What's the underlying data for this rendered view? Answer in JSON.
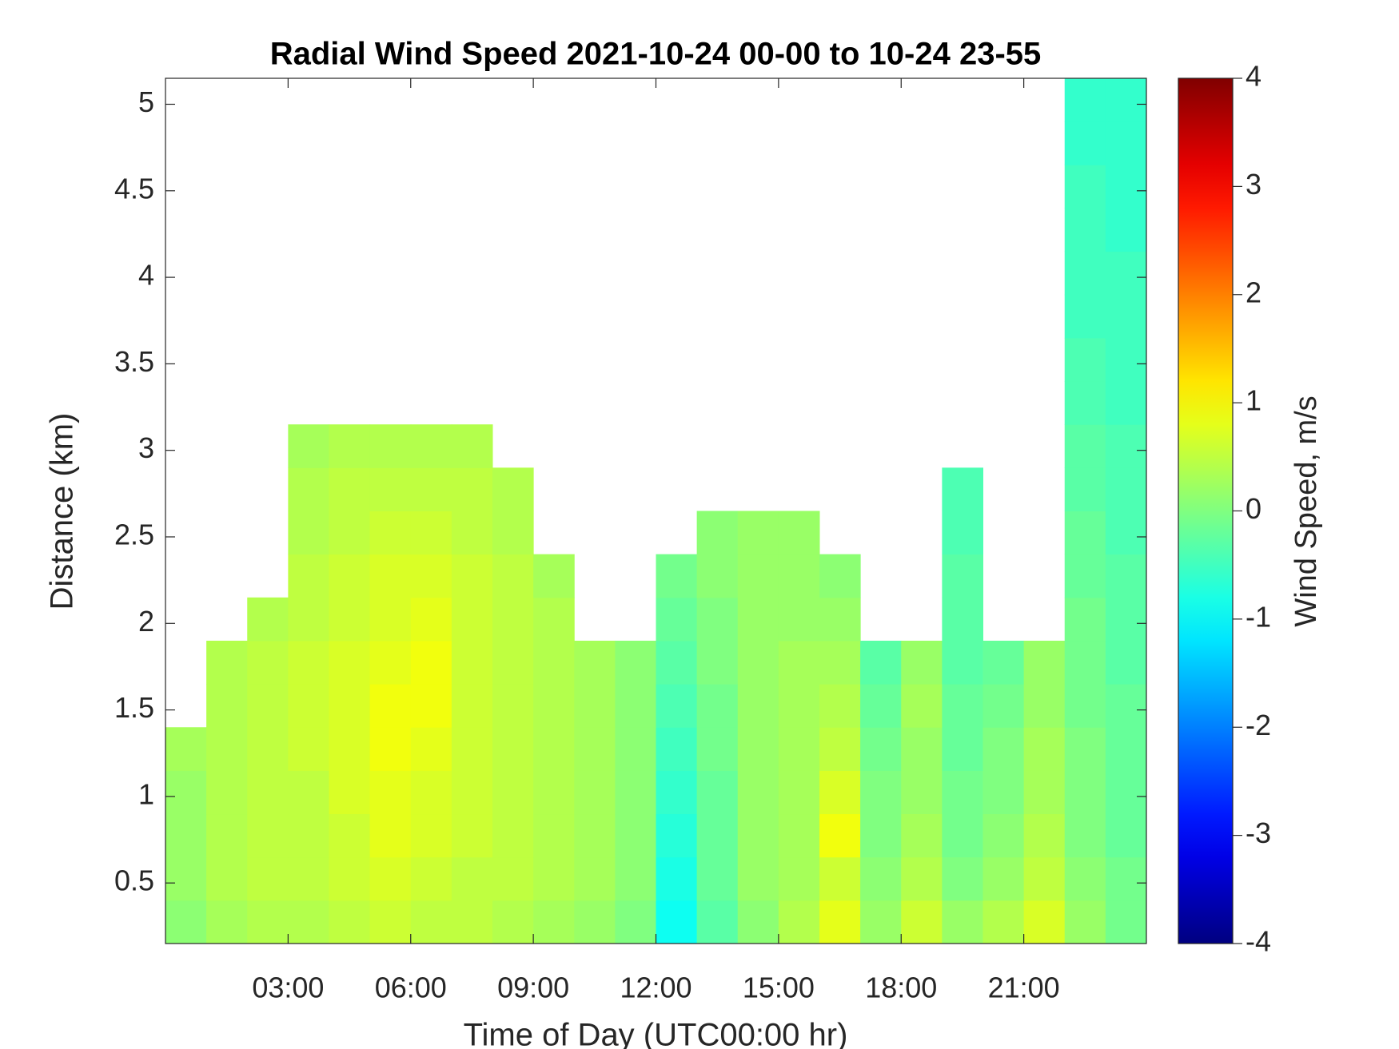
{
  "chart_data": {
    "type": "heatmap",
    "title": "Radial Wind Speed 2021-10-24 00-00 to 10-24 23-55",
    "x_label": "Time of Day (UTC00:00 hr)",
    "y_label": "Distance (km)",
    "colorbar_label": "Wind Speed, m/s",
    "colormap": "jet",
    "clim": [
      -4,
      4
    ],
    "cticks": [
      -4,
      -3,
      -2,
      -1,
      0,
      1,
      2,
      3,
      4
    ],
    "xlim": [
      0,
      24
    ],
    "xticks": [
      {
        "value": 3,
        "label": "03:00"
      },
      {
        "value": 6,
        "label": "06:00"
      },
      {
        "value": 9,
        "label": "09:00"
      },
      {
        "value": 12,
        "label": "12:00"
      },
      {
        "value": 15,
        "label": "15:00"
      },
      {
        "value": 18,
        "label": "18:00"
      },
      {
        "value": 21,
        "label": "21:00"
      }
    ],
    "ylim": [
      0.15,
      5.15
    ],
    "yticks": [
      0.5,
      1,
      1.5,
      2,
      2.5,
      3,
      3.5,
      4,
      4.5,
      5
    ],
    "xbins": [
      0,
      1,
      2,
      3,
      4,
      5,
      6,
      7,
      8,
      9,
      10,
      11,
      12,
      13,
      14,
      15,
      16,
      17,
      18,
      19,
      20,
      21,
      22,
      23,
      24
    ],
    "ybins": [
      0.15,
      0.4,
      0.65,
      0.9,
      1.15,
      1.4,
      1.65,
      1.9,
      2.15,
      2.4,
      2.65,
      2.9,
      3.15,
      3.4,
      3.65,
      3.9,
      4.15,
      4.4,
      4.65,
      4.9,
      5.15
    ],
    "values": [
      [
        0.1,
        0.3,
        0.4,
        0.4,
        0.5,
        0.6,
        0.5,
        0.5,
        0.4,
        0.3,
        0.2,
        0.0,
        -0.9,
        -0.3,
        0.1,
        0.4,
        0.8,
        0.2,
        0.6,
        0.2,
        0.4,
        0.7,
        0.2,
        -0.1
      ],
      [
        0.2,
        0.4,
        0.5,
        0.5,
        0.6,
        0.7,
        0.6,
        0.5,
        0.5,
        0.4,
        0.3,
        0.1,
        -0.8,
        -0.2,
        0.2,
        0.3,
        0.6,
        0.1,
        0.4,
        0.0,
        0.2,
        0.5,
        0.1,
        -0.1
      ],
      [
        0.2,
        0.4,
        0.5,
        0.5,
        0.6,
        0.8,
        0.7,
        0.6,
        0.5,
        0.4,
        0.3,
        0.1,
        -0.7,
        -0.2,
        0.2,
        0.3,
        0.9,
        0.0,
        0.3,
        -0.1,
        0.1,
        0.4,
        0.0,
        -0.2
      ],
      [
        0.2,
        0.4,
        0.5,
        0.5,
        0.7,
        0.8,
        0.7,
        0.6,
        0.5,
        0.4,
        0.3,
        0.1,
        -0.6,
        -0.2,
        0.2,
        0.3,
        0.7,
        0.0,
        0.2,
        -0.1,
        0.0,
        0.3,
        0.0,
        -0.2
      ],
      [
        0.3,
        0.4,
        0.5,
        0.6,
        0.7,
        0.9,
        0.8,
        0.6,
        0.5,
        0.4,
        0.3,
        0.1,
        -0.5,
        -0.1,
        0.2,
        0.3,
        0.5,
        -0.1,
        0.2,
        -0.2,
        0.0,
        0.3,
        0.0,
        -0.2
      ],
      [
        null,
        0.4,
        0.5,
        0.6,
        0.7,
        0.9,
        0.9,
        0.6,
        0.5,
        0.4,
        0.3,
        0.1,
        -0.4,
        -0.1,
        0.2,
        0.3,
        0.4,
        -0.2,
        0.3,
        -0.2,
        -0.1,
        0.2,
        -0.1,
        -0.2
      ],
      [
        null,
        0.4,
        0.5,
        0.6,
        0.7,
        0.8,
        0.9,
        0.6,
        0.5,
        0.4,
        0.3,
        0.1,
        -0.3,
        0.0,
        0.2,
        0.3,
        0.3,
        -0.3,
        0.2,
        -0.3,
        -0.2,
        0.2,
        -0.1,
        -0.3
      ],
      [
        null,
        null,
        0.4,
        0.5,
        0.6,
        0.7,
        0.8,
        0.6,
        0.5,
        0.4,
        null,
        null,
        -0.2,
        0.0,
        0.2,
        0.2,
        0.2,
        null,
        null,
        -0.3,
        null,
        null,
        -0.1,
        -0.3
      ],
      [
        null,
        null,
        null,
        0.5,
        0.6,
        0.7,
        0.7,
        0.6,
        0.5,
        0.3,
        null,
        null,
        -0.1,
        0.1,
        0.2,
        0.2,
        0.1,
        null,
        null,
        -0.3,
        null,
        null,
        -0.2,
        -0.3
      ],
      [
        null,
        null,
        null,
        0.4,
        0.5,
        0.6,
        0.6,
        0.5,
        0.4,
        null,
        null,
        null,
        null,
        0.1,
        0.2,
        0.2,
        null,
        null,
        null,
        -0.4,
        null,
        null,
        -0.2,
        -0.4
      ],
      [
        null,
        null,
        null,
        0.4,
        0.5,
        0.5,
        0.5,
        0.5,
        0.4,
        null,
        null,
        null,
        null,
        null,
        null,
        null,
        null,
        null,
        null,
        -0.4,
        null,
        null,
        -0.3,
        -0.4
      ],
      [
        null,
        null,
        null,
        0.3,
        0.4,
        0.4,
        0.4,
        0.4,
        null,
        null,
        null,
        null,
        null,
        null,
        null,
        null,
        null,
        null,
        null,
        null,
        null,
        null,
        -0.3,
        -0.4
      ],
      [
        null,
        null,
        null,
        null,
        null,
        null,
        null,
        null,
        null,
        null,
        null,
        null,
        null,
        null,
        null,
        null,
        null,
        null,
        null,
        null,
        null,
        null,
        -0.4,
        -0.5
      ],
      [
        null,
        null,
        null,
        null,
        null,
        null,
        null,
        null,
        null,
        null,
        null,
        null,
        null,
        null,
        null,
        null,
        null,
        null,
        null,
        null,
        null,
        null,
        -0.4,
        -0.5
      ],
      [
        null,
        null,
        null,
        null,
        null,
        null,
        null,
        null,
        null,
        null,
        null,
        null,
        null,
        null,
        null,
        null,
        null,
        null,
        null,
        null,
        null,
        null,
        -0.5,
        -0.5
      ],
      [
        null,
        null,
        null,
        null,
        null,
        null,
        null,
        null,
        null,
        null,
        null,
        null,
        null,
        null,
        null,
        null,
        null,
        null,
        null,
        null,
        null,
        null,
        -0.5,
        -0.5
      ],
      [
        null,
        null,
        null,
        null,
        null,
        null,
        null,
        null,
        null,
        null,
        null,
        null,
        null,
        null,
        null,
        null,
        null,
        null,
        null,
        null,
        null,
        null,
        -0.5,
        -0.6
      ],
      [
        null,
        null,
        null,
        null,
        null,
        null,
        null,
        null,
        null,
        null,
        null,
        null,
        null,
        null,
        null,
        null,
        null,
        null,
        null,
        null,
        null,
        null,
        -0.5,
        -0.6
      ],
      [
        null,
        null,
        null,
        null,
        null,
        null,
        null,
        null,
        null,
        null,
        null,
        null,
        null,
        null,
        null,
        null,
        null,
        null,
        null,
        null,
        null,
        null,
        -0.6,
        -0.6
      ],
      [
        null,
        null,
        null,
        null,
        null,
        null,
        null,
        null,
        null,
        null,
        null,
        null,
        null,
        null,
        null,
        null,
        null,
        null,
        null,
        null,
        null,
        null,
        -0.6,
        -0.6
      ]
    ]
  }
}
